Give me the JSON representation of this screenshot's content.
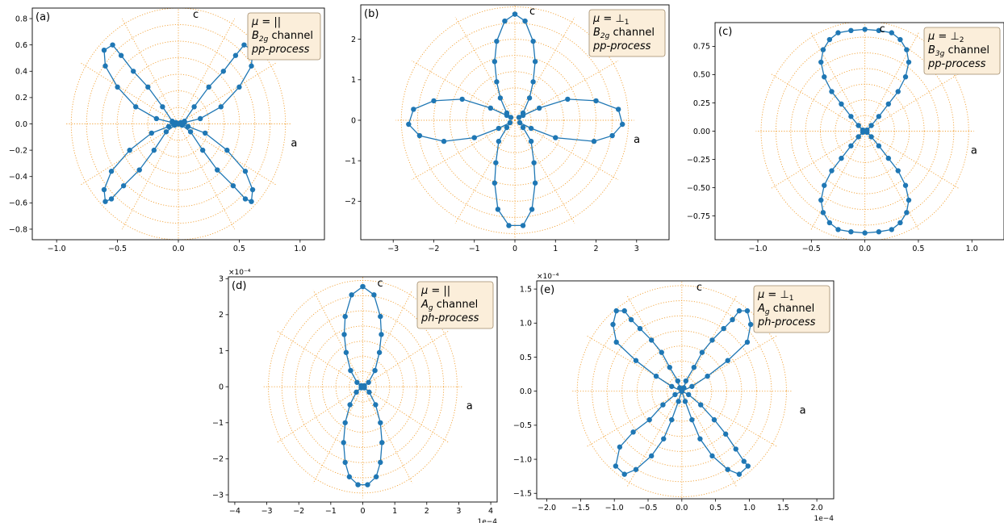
{
  "figure": {
    "grid_color": "#f2a33a",
    "line_color": "#1f77b4",
    "legend_fill": "#fbeeda",
    "legend_edge": "#a08a6a"
  },
  "chart_data": [
    {
      "id": "a",
      "type": "polar-scatter-line",
      "panel_label": "(a)",
      "legend": [
        "μ = ||",
        "B2g channel",
        "pp-process"
      ],
      "axis_c_label": "c",
      "axis_a_label": "a",
      "xlim": [
        -1.2,
        1.2
      ],
      "ylim": [
        -0.88,
        0.88
      ],
      "xticks": [
        -1.0,
        -0.5,
        0.0,
        0.5,
        1.0
      ],
      "xtick_labels": [
        "−1.0",
        "−0.5",
        "0.0",
        "0.5",
        "1.0"
      ],
      "yticks": [
        -0.8,
        -0.6,
        -0.4,
        -0.2,
        0.0,
        0.2,
        0.4,
        0.6,
        0.8
      ],
      "ytick_labels": [
        "−0.8",
        "−0.6",
        "−0.4",
        "−0.2",
        "0.0",
        "0.2",
        "0.4",
        "0.6",
        "0.8"
      ],
      "rmax": 0.88,
      "rings": 7,
      "spokes": 12,
      "x_multiplier": "",
      "y_multiplier": "",
      "points": [
        [
          0,
          0
        ],
        [
          0.02,
          0.01
        ],
        [
          0.05,
          0.02
        ],
        [
          0.13,
          0.13
        ],
        [
          0.25,
          0.28
        ],
        [
          0.37,
          0.4
        ],
        [
          0.47,
          0.52
        ],
        [
          0.54,
          0.6
        ],
        [
          0.61,
          0.56
        ],
        [
          0.6,
          0.44
        ],
        [
          0.5,
          0.28
        ],
        [
          0.35,
          0.13
        ],
        [
          0.18,
          0.04
        ],
        [
          0.05,
          0.01
        ],
        [
          0,
          0
        ],
        [
          0.03,
          -0.01
        ],
        [
          0.1,
          -0.06
        ],
        [
          0.2,
          -0.2
        ],
        [
          0.32,
          -0.35
        ],
        [
          0.45,
          -0.47
        ],
        [
          0.55,
          -0.57
        ],
        [
          0.6,
          -0.59
        ],
        [
          0.61,
          -0.5
        ],
        [
          0.55,
          -0.36
        ],
        [
          0.4,
          -0.2
        ],
        [
          0.22,
          -0.07
        ],
        [
          0.08,
          -0.02
        ],
        [
          0,
          0
        ],
        [
          -0.03,
          -0.01
        ],
        [
          -0.1,
          -0.06
        ],
        [
          -0.2,
          -0.2
        ],
        [
          -0.32,
          -0.35
        ],
        [
          -0.45,
          -0.47
        ],
        [
          -0.55,
          -0.57
        ],
        [
          -0.6,
          -0.59
        ],
        [
          -0.61,
          -0.5
        ],
        [
          -0.55,
          -0.36
        ],
        [
          -0.4,
          -0.2
        ],
        [
          -0.22,
          -0.07
        ],
        [
          -0.08,
          -0.02
        ],
        [
          0,
          0
        ],
        [
          -0.02,
          0.01
        ],
        [
          -0.05,
          0.02
        ],
        [
          -0.13,
          0.13
        ],
        [
          -0.25,
          0.28
        ],
        [
          -0.37,
          0.4
        ],
        [
          -0.47,
          0.52
        ],
        [
          -0.54,
          0.6
        ],
        [
          -0.61,
          0.56
        ],
        [
          -0.6,
          0.44
        ],
        [
          -0.5,
          0.28
        ],
        [
          -0.35,
          0.13
        ],
        [
          -0.18,
          0.04
        ],
        [
          -0.05,
          0.01
        ],
        [
          0,
          0
        ]
      ]
    },
    {
      "id": "b",
      "type": "polar-scatter-line",
      "panel_label": "(b)",
      "legend": [
        "μ = ⊥1",
        "B2g channel",
        "pp-process"
      ],
      "axis_c_label": "c",
      "axis_a_label": "a",
      "xlim": [
        -3.8,
        3.8
      ],
      "ylim": [
        -2.95,
        2.85
      ],
      "xticks": [
        -3,
        -2,
        -1,
        0,
        1,
        2,
        3
      ],
      "xtick_labels": [
        "−3",
        "−2",
        "−1",
        "0",
        "1",
        "2",
        "3"
      ],
      "yticks": [
        -2,
        -1,
        0,
        1,
        2
      ],
      "ytick_labels": [
        "−2",
        "−1",
        "0",
        "1",
        "2"
      ],
      "rmax": 2.8,
      "rings": 7,
      "spokes": 12,
      "x_multiplier": "",
      "y_multiplier": "",
      "points": [
        [
          0,
          2.62
        ],
        [
          0.25,
          2.45
        ],
        [
          0.45,
          1.95
        ],
        [
          0.5,
          1.45
        ],
        [
          0.45,
          0.95
        ],
        [
          0.36,
          0.55
        ],
        [
          0.2,
          0.18
        ],
        [
          0.1,
          0.07
        ],
        [
          0.2,
          0.12
        ],
        [
          0.6,
          0.3
        ],
        [
          1.3,
          0.52
        ],
        [
          2.0,
          0.48
        ],
        [
          2.55,
          0.27
        ],
        [
          2.65,
          -0.1
        ],
        [
          2.4,
          -0.38
        ],
        [
          1.95,
          -0.52
        ],
        [
          1.0,
          -0.43
        ],
        [
          0.4,
          -0.2
        ],
        [
          0.12,
          -0.06
        ],
        [
          0.2,
          -0.18
        ],
        [
          0.4,
          -0.52
        ],
        [
          0.47,
          -1.05
        ],
        [
          0.5,
          -1.55
        ],
        [
          0.42,
          -2.2
        ],
        [
          0.2,
          -2.6
        ],
        [
          -0.15,
          -2.6
        ],
        [
          -0.42,
          -2.2
        ],
        [
          -0.5,
          -1.55
        ],
        [
          -0.47,
          -1.05
        ],
        [
          -0.4,
          -0.52
        ],
        [
          -0.2,
          -0.18
        ],
        [
          -0.12,
          -0.06
        ],
        [
          -0.4,
          -0.2
        ],
        [
          -1.0,
          -0.43
        ],
        [
          -1.75,
          -0.52
        ],
        [
          -2.35,
          -0.38
        ],
        [
          -2.62,
          -0.1
        ],
        [
          -2.5,
          0.27
        ],
        [
          -2.0,
          0.48
        ],
        [
          -1.3,
          0.52
        ],
        [
          -0.6,
          0.3
        ],
        [
          -0.2,
          0.12
        ],
        [
          -0.1,
          0.07
        ],
        [
          -0.2,
          0.18
        ],
        [
          -0.36,
          0.55
        ],
        [
          -0.45,
          0.95
        ],
        [
          -0.5,
          1.45
        ],
        [
          -0.45,
          1.95
        ],
        [
          -0.25,
          2.45
        ],
        [
          0,
          2.62
        ]
      ]
    },
    {
      "id": "c",
      "type": "polar-scatter-line",
      "panel_label": "(c)",
      "legend": [
        "μ = ⊥2",
        "B3g channel",
        "pp-process"
      ],
      "axis_c_label": "c",
      "axis_a_label": "a",
      "xlim": [
        -1.4,
        1.3
      ],
      "ylim": [
        -0.96,
        0.96
      ],
      "xticks": [
        -1.0,
        -0.5,
        0.0,
        0.5,
        1.0
      ],
      "xtick_labels": [
        "−1.0",
        "−0.5",
        "0.0",
        "0.5",
        "1.0"
      ],
      "yticks": [
        -0.75,
        -0.5,
        -0.25,
        0.0,
        0.25,
        0.5,
        0.75
      ],
      "ytick_labels": [
        "−0.75",
        "−0.50",
        "−0.25",
        "0.00",
        "0.25",
        "0.50",
        "0.75"
      ],
      "rmax": 0.97,
      "rings": 7,
      "spokes": 12,
      "x_multiplier": "",
      "y_multiplier": "",
      "points": [
        [
          0,
          0
        ],
        [
          0.02,
          0.01
        ],
        [
          0.06,
          0.05
        ],
        [
          0.13,
          0.13
        ],
        [
          0.22,
          0.24
        ],
        [
          0.31,
          0.35
        ],
        [
          0.38,
          0.48
        ],
        [
          0.41,
          0.61
        ],
        [
          0.39,
          0.72
        ],
        [
          0.33,
          0.81
        ],
        [
          0.25,
          0.87
        ],
        [
          0.13,
          0.89
        ],
        [
          0,
          0.9
        ],
        [
          -0.13,
          0.89
        ],
        [
          -0.25,
          0.87
        ],
        [
          -0.33,
          0.81
        ],
        [
          -0.39,
          0.72
        ],
        [
          -0.41,
          0.61
        ],
        [
          -0.38,
          0.48
        ],
        [
          -0.31,
          0.35
        ],
        [
          -0.22,
          0.24
        ],
        [
          -0.13,
          0.13
        ],
        [
          -0.06,
          0.05
        ],
        [
          -0.02,
          0.01
        ],
        [
          0,
          0
        ],
        [
          0.02,
          -0.01
        ],
        [
          0.06,
          -0.05
        ],
        [
          0.13,
          -0.13
        ],
        [
          0.22,
          -0.24
        ],
        [
          0.31,
          -0.35
        ],
        [
          0.38,
          -0.48
        ],
        [
          0.41,
          -0.61
        ],
        [
          0.39,
          -0.72
        ],
        [
          0.33,
          -0.81
        ],
        [
          0.25,
          -0.87
        ],
        [
          0.13,
          -0.89
        ],
        [
          0,
          -0.9
        ],
        [
          -0.13,
          -0.89
        ],
        [
          -0.25,
          -0.87
        ],
        [
          -0.33,
          -0.81
        ],
        [
          -0.39,
          -0.72
        ],
        [
          -0.41,
          -0.61
        ],
        [
          -0.38,
          -0.48
        ],
        [
          -0.31,
          -0.35
        ],
        [
          -0.22,
          -0.24
        ],
        [
          -0.13,
          -0.13
        ],
        [
          -0.06,
          -0.05
        ],
        [
          -0.02,
          -0.01
        ],
        [
          0,
          0
        ]
      ]
    },
    {
      "id": "d",
      "type": "polar-scatter-line",
      "panel_label": "(d)",
      "legend": [
        "μ = ||",
        "Ag channel",
        "ph-process"
      ],
      "axis_c_label": "c",
      "axis_a_label": "a",
      "xlim": [
        -4.2,
        4.2
      ],
      "ylim": [
        -3.2,
        3.05
      ],
      "xticks": [
        -4,
        -3,
        -2,
        -1,
        0,
        1,
        2,
        3,
        4
      ],
      "xtick_labels": [
        "−4",
        "−3",
        "−2",
        "−1",
        "0",
        "1",
        "2",
        "3",
        "4"
      ],
      "yticks": [
        -3,
        -2,
        -1,
        0,
        1,
        2,
        3
      ],
      "ytick_labels": [
        "−3",
        "−2",
        "−1",
        "0",
        "1",
        "2",
        "3"
      ],
      "rmax": 2.95,
      "rings": 7,
      "spokes": 12,
      "x_multiplier": "1e−4",
      "y_multiplier": "×10⁻⁴",
      "points": [
        [
          0,
          2.78
        ],
        [
          0.35,
          2.55
        ],
        [
          0.55,
          1.95
        ],
        [
          0.58,
          1.45
        ],
        [
          0.52,
          0.95
        ],
        [
          0.38,
          0.45
        ],
        [
          0.18,
          0.12
        ],
        [
          0.05,
          0.03
        ],
        [
          0,
          0
        ],
        [
          0.05,
          -0.03
        ],
        [
          0.2,
          -0.15
        ],
        [
          0.4,
          -0.5
        ],
        [
          0.55,
          -1.0
        ],
        [
          0.6,
          -1.55
        ],
        [
          0.55,
          -2.1
        ],
        [
          0.42,
          -2.5
        ],
        [
          0.15,
          -2.72
        ],
        [
          -0.15,
          -2.72
        ],
        [
          -0.42,
          -2.5
        ],
        [
          -0.55,
          -2.1
        ],
        [
          -0.6,
          -1.55
        ],
        [
          -0.55,
          -1.0
        ],
        [
          -0.4,
          -0.5
        ],
        [
          -0.2,
          -0.15
        ],
        [
          -0.05,
          -0.03
        ],
        [
          0,
          0
        ],
        [
          -0.05,
          0.03
        ],
        [
          -0.18,
          0.12
        ],
        [
          -0.38,
          0.45
        ],
        [
          -0.52,
          0.95
        ],
        [
          -0.58,
          1.45
        ],
        [
          -0.55,
          1.95
        ],
        [
          -0.35,
          2.55
        ],
        [
          0,
          2.78
        ]
      ]
    },
    {
      "id": "e",
      "type": "polar-scatter-line",
      "panel_label": "(e)",
      "legend": [
        "μ = ⊥1",
        "Ag channel",
        "ph-process"
      ],
      "axis_c_label": "c",
      "axis_a_label": "a",
      "xlim": [
        -2.15,
        2.25
      ],
      "ylim": [
        -1.58,
        1.62
      ],
      "xticks": [
        -2.0,
        -1.5,
        -1.0,
        -0.5,
        0.0,
        0.5,
        1.0,
        1.5,
        2.0
      ],
      "xtick_labels": [
        "−2.0",
        "−1.5",
        "−1.0",
        "−0.5",
        "0.0",
        "0.5",
        "1.0",
        "1.5",
        "2.0"
      ],
      "yticks": [
        -1.5,
        -1.0,
        -0.5,
        0.0,
        0.5,
        1.0,
        1.5
      ],
      "ytick_labels": [
        "−1.5",
        "−1.0",
        "−0.5",
        "0.0",
        "0.5",
        "1.0",
        "1.5"
      ],
      "rmax": 1.55,
      "rings": 7,
      "spokes": 12,
      "x_multiplier": "1e−4",
      "y_multiplier": "×10⁻⁴",
      "points": [
        [
          0,
          0
        ],
        [
          0.03,
          0.05
        ],
        [
          0.06,
          0.15
        ],
        [
          0.18,
          0.35
        ],
        [
          0.3,
          0.57
        ],
        [
          0.45,
          0.75
        ],
        [
          0.62,
          0.92
        ],
        [
          0.75,
          1.05
        ],
        [
          0.85,
          1.18
        ],
        [
          0.97,
          1.18
        ],
        [
          1.02,
          0.98
        ],
        [
          0.97,
          0.72
        ],
        [
          0.68,
          0.45
        ],
        [
          0.38,
          0.22
        ],
        [
          0.15,
          0.07
        ],
        [
          0,
          0
        ],
        [
          0.1,
          -0.05
        ],
        [
          0.28,
          -0.2
        ],
        [
          0.48,
          -0.42
        ],
        [
          0.65,
          -0.63
        ],
        [
          0.8,
          -0.85
        ],
        [
          0.92,
          -1.03
        ],
        [
          0.98,
          -1.1
        ],
        [
          0.85,
          -1.22
        ],
        [
          0.68,
          -1.15
        ],
        [
          0.45,
          -0.95
        ],
        [
          0.27,
          -0.7
        ],
        [
          0.15,
          -0.42
        ],
        [
          0.05,
          -0.15
        ],
        [
          0,
          0
        ],
        [
          -0.05,
          -0.15
        ],
        [
          -0.15,
          -0.42
        ],
        [
          -0.27,
          -0.7
        ],
        [
          -0.45,
          -0.95
        ],
        [
          -0.68,
          -1.15
        ],
        [
          -0.85,
          -1.22
        ],
        [
          -0.98,
          -1.1
        ],
        [
          -0.92,
          -0.82
        ],
        [
          -0.72,
          -0.6
        ],
        [
          -0.48,
          -0.42
        ],
        [
          -0.28,
          -0.2
        ],
        [
          -0.1,
          -0.05
        ],
        [
          0,
          0
        ],
        [
          -0.15,
          0.07
        ],
        [
          -0.38,
          0.22
        ],
        [
          -0.68,
          0.45
        ],
        [
          -0.97,
          0.72
        ],
        [
          -1.02,
          0.98
        ],
        [
          -0.97,
          1.18
        ],
        [
          -0.85,
          1.18
        ],
        [
          -0.75,
          1.05
        ],
        [
          -0.62,
          0.92
        ],
        [
          -0.45,
          0.75
        ],
        [
          -0.3,
          0.57
        ],
        [
          -0.18,
          0.35
        ],
        [
          -0.06,
          0.15
        ],
        [
          -0.03,
          0.05
        ],
        [
          0,
          0
        ]
      ]
    }
  ]
}
